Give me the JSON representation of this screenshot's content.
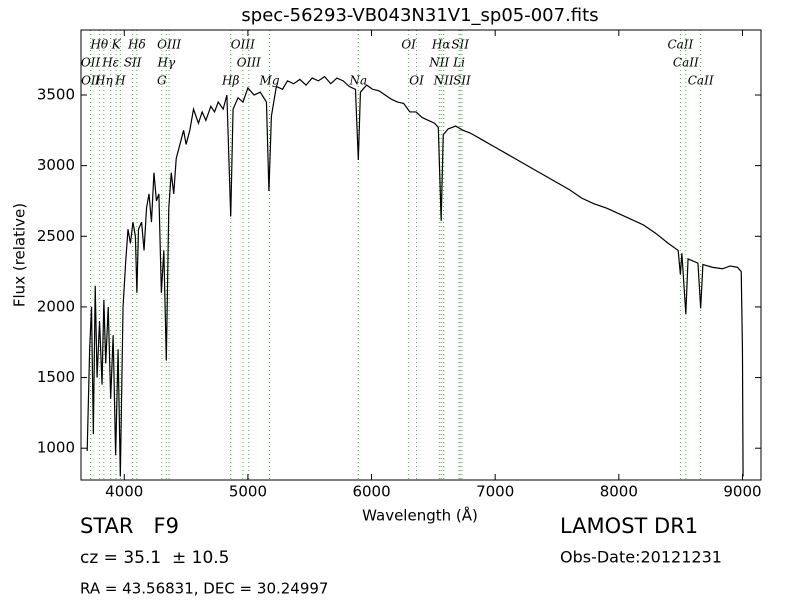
{
  "chart_data": {
    "type": "line",
    "title": "spec-56293-VB043N31V1_sp05-007.fits",
    "x_label": "Wavelength (Å)",
    "y_label": "Flux (relative)",
    "xlim": [
      3650,
      9150
    ],
    "ylim": [
      775,
      3960
    ],
    "xticks": [
      4000,
      5000,
      6000,
      7000,
      8000,
      9000
    ],
    "yticks": [
      1000,
      1500,
      2000,
      2500,
      3000,
      3500
    ],
    "line_color": "#000000",
    "marker_color": "#33bb33",
    "x": [
      3700,
      3720,
      3735,
      3750,
      3765,
      3780,
      3800,
      3820,
      3835,
      3850,
      3870,
      3890,
      3910,
      3930,
      3950,
      3968,
      3990,
      4010,
      4030,
      4050,
      4070,
      4090,
      4102,
      4115,
      4140,
      4160,
      4180,
      4200,
      4220,
      4240,
      4260,
      4280,
      4300,
      4320,
      4340,
      4360,
      4380,
      4400,
      4420,
      4450,
      4480,
      4500,
      4530,
      4560,
      4600,
      4630,
      4660,
      4700,
      4730,
      4760,
      4800,
      4830,
      4861,
      4880,
      4920,
      4960,
      5000,
      5050,
      5100,
      5150,
      5170,
      5190,
      5230,
      5280,
      5320,
      5370,
      5420,
      5470,
      5520,
      5570,
      5620,
      5670,
      5720,
      5770,
      5820,
      5870,
      5893,
      5910,
      5960,
      6010,
      6060,
      6110,
      6160,
      6210,
      6260,
      6310,
      6360,
      6410,
      6460,
      6510,
      6540,
      6563,
      6580,
      6620,
      6680,
      6740,
      6800,
      6900,
      7000,
      7100,
      7200,
      7300,
      7400,
      7500,
      7600,
      7700,
      7800,
      7900,
      8000,
      8100,
      8200,
      8300,
      8400,
      8480,
      8498,
      8510,
      8542,
      8560,
      8640,
      8662,
      8680,
      8760,
      8840,
      8900,
      8960,
      8990,
      9000,
      9005
    ],
    "values": [
      980,
      1700,
      2000,
      1100,
      2150,
      1500,
      1900,
      1450,
      2050,
      1600,
      2000,
      1350,
      1800,
      950,
      1700,
      800,
      2000,
      2300,
      2550,
      2450,
      2600,
      2500,
      2100,
      2550,
      2600,
      2400,
      2700,
      2800,
      2600,
      2950,
      2750,
      2800,
      2100,
      2400,
      1620,
      2700,
      2950,
      2800,
      3050,
      3150,
      3250,
      3150,
      3250,
      3400,
      3300,
      3380,
      3320,
      3420,
      3380,
      3450,
      3400,
      3500,
      2640,
      3400,
      3480,
      3450,
      3550,
      3500,
      3520,
      3450,
      2820,
      3350,
      3560,
      3540,
      3600,
      3580,
      3610,
      3570,
      3620,
      3600,
      3630,
      3580,
      3620,
      3600,
      3560,
      3540,
      3040,
      3520,
      3570,
      3540,
      3530,
      3500,
      3470,
      3450,
      3440,
      3380,
      3380,
      3340,
      3320,
      3300,
      3270,
      2610,
      3220,
      3260,
      3280,
      3250,
      3230,
      3180,
      3130,
      3080,
      3030,
      2980,
      2930,
      2880,
      2830,
      2770,
      2730,
      2700,
      2660,
      2620,
      2580,
      2520,
      2450,
      2400,
      2230,
      2380,
      1950,
      2340,
      2310,
      1990,
      2300,
      2280,
      2270,
      2290,
      2280,
      2250,
      1700,
      800
    ],
    "line_labels": [
      [
        {
          "label": "Hθ",
          "x": 3798
        },
        {
          "label": "K",
          "x": 3934
        },
        {
          "label": "Hδ",
          "x": 4102
        },
        {
          "label": "OIII",
          "x": 4363
        },
        {
          "label": "OIII",
          "x": 4959
        },
        {
          "label": "OI",
          "x": 6300
        },
        {
          "label": "Hα",
          "x": 6563
        },
        {
          "label": "SII",
          "x": 6717
        },
        {
          "label": "CaII",
          "x": 8498
        }
      ],
      [
        {
          "label": "OII",
          "x": 3727
        },
        {
          "label": "Hε",
          "x": 3890
        },
        {
          "label": "SII",
          "x": 4068
        },
        {
          "label": "Hγ",
          "x": 4340
        },
        {
          "label": "OIII",
          "x": 5007
        },
        {
          "label": "NII",
          "x": 6548
        },
        {
          "label": "Li",
          "x": 6708
        },
        {
          "label": "CaII",
          "x": 8542
        }
      ],
      [
        {
          "label": "OII",
          "x": 3729
        },
        {
          "label": "Hη",
          "x": 3835
        },
        {
          "label": "H",
          "x": 3968
        },
        {
          "label": "G",
          "x": 4304
        },
        {
          "label": "Hβ",
          "x": 4861
        },
        {
          "label": "Mg",
          "x": 5175
        },
        {
          "label": "Na",
          "x": 5893
        },
        {
          "label": "OI",
          "x": 6364
        },
        {
          "label": "NII",
          "x": 6583
        },
        {
          "label": "SII",
          "x": 6731
        },
        {
          "label": "CaII",
          "x": 8662
        }
      ]
    ],
    "info": {
      "object_class": "STAR   F9",
      "redshift": "cz = 35.1  ± 10.5",
      "coordinates": "RA = 43.56831, DEC = 30.24997",
      "survey": "LAMOST DR1",
      "obs_date": "Obs-Date:20121231"
    }
  }
}
